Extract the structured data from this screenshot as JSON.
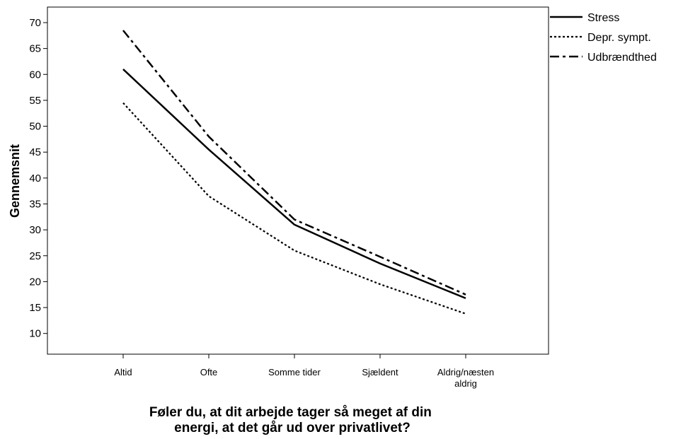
{
  "chart_data": {
    "type": "line",
    "title": "",
    "xlabel": "Føler du, at dit arbejde tager så meget af din energi, at det går ud over privatlivet?",
    "xlabel_lines": [
      "Føler du, at dit arbejde tager så meget af din",
      "energi, at det går ud over privatlivet?"
    ],
    "ylabel": "Gennemsnit",
    "categories": [
      "Altid",
      "Ofte",
      "Somme tider",
      "Sjældent",
      "Aldrig/næsten aldrig"
    ],
    "category_lines": [
      [
        "Altid"
      ],
      [
        "Ofte"
      ],
      [
        "Somme tider"
      ],
      [
        "Sjældent"
      ],
      [
        "Aldrig/næsten",
        "aldrig"
      ]
    ],
    "ylim": [
      6,
      73
    ],
    "yticks": [
      10,
      15,
      20,
      25,
      30,
      35,
      40,
      45,
      50,
      55,
      60,
      65,
      70
    ],
    "grid": false,
    "legend_position": "top-right",
    "series": [
      {
        "name": "Stress",
        "line_style": "solid",
        "color": "#000000",
        "values": [
          61,
          45.5,
          31,
          23.5,
          16.8
        ]
      },
      {
        "name": "Depr. sympt.",
        "line_style": "dotted",
        "color": "#000000",
        "values": [
          54.5,
          36.5,
          26,
          19.5,
          13.8
        ]
      },
      {
        "name": "Udbrændthed",
        "line_style": "dash-dot",
        "color": "#000000",
        "values": [
          68.5,
          48,
          32,
          24.8,
          17.5
        ]
      }
    ]
  }
}
